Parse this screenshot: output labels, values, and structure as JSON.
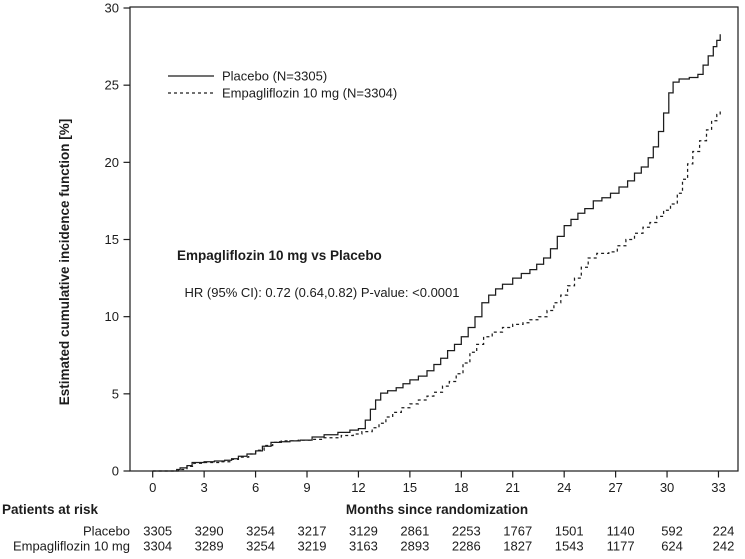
{
  "figure": {
    "annotation": {
      "title": "Empagliflozin 10 mg vs Placebo",
      "stats": [
        {
          "text": "HR (95% CI): ",
          "bold": true
        },
        {
          "text": "0.72 (0.64,0.82) ",
          "bold": false
        },
        {
          "text": "P-value: ",
          "bold": true
        },
        {
          "text": "<0.0001",
          "bold": false
        }
      ]
    }
  },
  "chart_data": {
    "type": "line",
    "subtype": "step-after cumulative incidence (Kaplan-Meier style)",
    "title": "",
    "xlabel": "Months since randomization",
    "ylabel": "Estimated cumulative incidence function [%]",
    "xlim": [
      -1.3,
      34.2
    ],
    "ylim": [
      0,
      30
    ],
    "xticks": [
      0,
      3,
      6,
      9,
      12,
      15,
      18,
      21,
      24,
      27,
      30,
      33
    ],
    "yticks": [
      0,
      5,
      10,
      15,
      20,
      25,
      30
    ],
    "grid": false,
    "legend_position": "top-left-inside",
    "line_color": "#1c1c1c",
    "annotations": [
      "Empagliflozin 10 mg vs Placebo",
      "HR (95% CI): 0.72 (0.64,0.82) P-value: <0.0001"
    ],
    "series": [
      {
        "name": "Placebo (N=3305)",
        "line": "solid",
        "color": "#1c1c1c",
        "points": [
          [
            0,
            0
          ],
          [
            1.4,
            0.1
          ],
          [
            1.6,
            0.2
          ],
          [
            2,
            0.35
          ],
          [
            2.3,
            0.55
          ],
          [
            3,
            0.6
          ],
          [
            3.6,
            0.65
          ],
          [
            4.2,
            0.7
          ],
          [
            4.6,
            0.8
          ],
          [
            5,
            0.95
          ],
          [
            5.5,
            1.1
          ],
          [
            6,
            1.3
          ],
          [
            6.4,
            1.6
          ],
          [
            6.9,
            1.85
          ],
          [
            7.4,
            1.9
          ],
          [
            8,
            1.95
          ],
          [
            8.6,
            2
          ],
          [
            9.3,
            2.2
          ],
          [
            10,
            2.35
          ],
          [
            10.8,
            2.5
          ],
          [
            11.5,
            2.65
          ],
          [
            12,
            2.75
          ],
          [
            12.4,
            3.3
          ],
          [
            12.7,
            4
          ],
          [
            13,
            4.6
          ],
          [
            13.3,
            5.05
          ],
          [
            13.7,
            5.2
          ],
          [
            14.2,
            5.4
          ],
          [
            14.6,
            5.65
          ],
          [
            15,
            5.9
          ],
          [
            15.5,
            6.15
          ],
          [
            16,
            6.5
          ],
          [
            16.4,
            6.9
          ],
          [
            16.8,
            7.3
          ],
          [
            17.2,
            7.8
          ],
          [
            17.6,
            8.2
          ],
          [
            18,
            8.7
          ],
          [
            18.4,
            9.3
          ],
          [
            18.8,
            10
          ],
          [
            19.2,
            10.9
          ],
          [
            19.6,
            11.4
          ],
          [
            20,
            11.8
          ],
          [
            20.4,
            12.1
          ],
          [
            21,
            12.5
          ],
          [
            21.5,
            12.8
          ],
          [
            22,
            13.05
          ],
          [
            22.4,
            13.4
          ],
          [
            22.8,
            13.8
          ],
          [
            23.2,
            14.4
          ],
          [
            23.6,
            15.2
          ],
          [
            24,
            15.9
          ],
          [
            24.4,
            16.3
          ],
          [
            24.8,
            16.7
          ],
          [
            25.2,
            17
          ],
          [
            25.7,
            17.5
          ],
          [
            26.2,
            17.7
          ],
          [
            26.7,
            18
          ],
          [
            27.2,
            18.4
          ],
          [
            27.7,
            18.8
          ],
          [
            28.1,
            19.3
          ],
          [
            28.5,
            19.7
          ],
          [
            28.9,
            20.3
          ],
          [
            29.2,
            21
          ],
          [
            29.5,
            22
          ],
          [
            29.8,
            23.2
          ],
          [
            30.1,
            24.5
          ],
          [
            30.35,
            25.2
          ],
          [
            30.7,
            25.4
          ],
          [
            31.3,
            25.5
          ],
          [
            31.8,
            25.7
          ],
          [
            32.1,
            26.3
          ],
          [
            32.4,
            26.9
          ],
          [
            32.7,
            27.5
          ],
          [
            32.9,
            27.9
          ],
          [
            33.1,
            28.3
          ]
        ]
      },
      {
        "name": "Empagliflozin 10 mg (N=3304)",
        "line": "dashed",
        "color": "#1c1c1c",
        "points": [
          [
            0,
            0
          ],
          [
            1.5,
            0.1
          ],
          [
            2,
            0.3
          ],
          [
            2.4,
            0.5
          ],
          [
            3,
            0.55
          ],
          [
            4,
            0.6
          ],
          [
            4.6,
            0.75
          ],
          [
            5,
            0.9
          ],
          [
            5.6,
            1.1
          ],
          [
            6,
            1.35
          ],
          [
            6.5,
            1.65
          ],
          [
            7,
            1.85
          ],
          [
            7.5,
            1.95
          ],
          [
            8.5,
            2
          ],
          [
            9.3,
            2.05
          ],
          [
            10,
            2.15
          ],
          [
            11,
            2.3
          ],
          [
            11.7,
            2.4
          ],
          [
            12.2,
            2.55
          ],
          [
            12.8,
            2.8
          ],
          [
            13.2,
            3.1
          ],
          [
            13.6,
            3.5
          ],
          [
            14,
            3.8
          ],
          [
            14.5,
            4.1
          ],
          [
            15,
            4.35
          ],
          [
            15.5,
            4.6
          ],
          [
            16,
            4.85
          ],
          [
            16.4,
            5.1
          ],
          [
            16.9,
            5.5
          ],
          [
            17.3,
            5.8
          ],
          [
            17.7,
            6.3
          ],
          [
            18.1,
            7
          ],
          [
            18.5,
            7.7
          ],
          [
            18.9,
            8.2
          ],
          [
            19.3,
            8.7
          ],
          [
            19.8,
            9
          ],
          [
            20.4,
            9.3
          ],
          [
            21,
            9.5
          ],
          [
            21.6,
            9.6
          ],
          [
            22,
            9.8
          ],
          [
            22.5,
            10
          ],
          [
            23,
            10.4
          ],
          [
            23.4,
            10.9
          ],
          [
            23.8,
            11.4
          ],
          [
            24.2,
            12
          ],
          [
            24.6,
            12.5
          ],
          [
            25,
            13.2
          ],
          [
            25.4,
            13.8
          ],
          [
            25.9,
            14.1
          ],
          [
            26.6,
            14.2
          ],
          [
            27.1,
            14.6
          ],
          [
            27.6,
            15
          ],
          [
            28.1,
            15.4
          ],
          [
            28.6,
            15.8
          ],
          [
            29,
            16.1
          ],
          [
            29.4,
            16.5
          ],
          [
            29.8,
            16.9
          ],
          [
            30.2,
            17.3
          ],
          [
            30.6,
            18
          ],
          [
            30.9,
            18.9
          ],
          [
            31.2,
            19.9
          ],
          [
            31.5,
            20.7
          ],
          [
            31.9,
            21.4
          ],
          [
            32.3,
            22.1
          ],
          [
            32.6,
            22.7
          ],
          [
            32.9,
            23.1
          ],
          [
            33.1,
            23.4
          ]
        ]
      }
    ]
  },
  "risk_table": {
    "title": "Patients at risk",
    "months": [
      0,
      3,
      6,
      9,
      12,
      15,
      18,
      21,
      24,
      27,
      30,
      33
    ],
    "rows": [
      {
        "label": "Placebo",
        "values": [
          3305,
          3290,
          3254,
          3217,
          3129,
          2861,
          2253,
          1767,
          1501,
          1140,
          592,
          224
        ]
      },
      {
        "label": "Empagliflozin 10 mg",
        "values": [
          3304,
          3289,
          3254,
          3219,
          3163,
          2893,
          2286,
          1827,
          1543,
          1177,
          624,
          242
        ]
      }
    ]
  }
}
